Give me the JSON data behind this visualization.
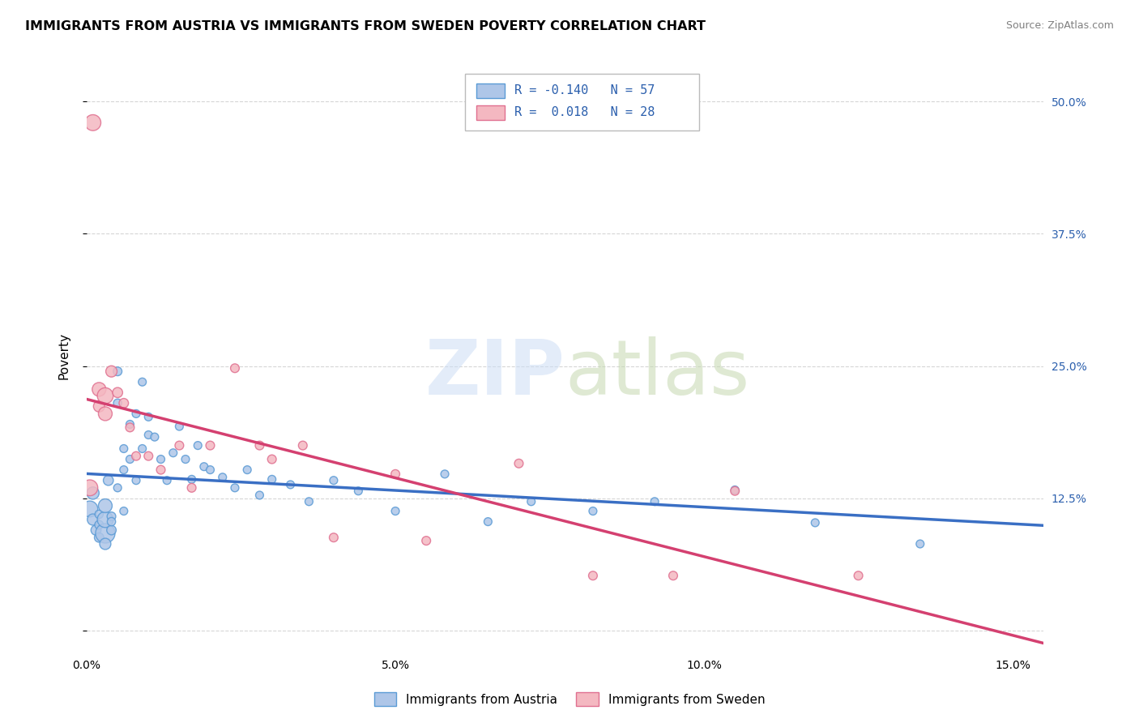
{
  "title": "IMMIGRANTS FROM AUSTRIA VS IMMIGRANTS FROM SWEDEN POVERTY CORRELATION CHART",
  "source": "Source: ZipAtlas.com",
  "ylabel": "Poverty",
  "xlim": [
    0.0,
    0.155
  ],
  "ylim": [
    -0.02,
    0.54
  ],
  "xticks": [
    0.0,
    0.05,
    0.1,
    0.15
  ],
  "xticklabels": [
    "0.0%",
    "5.0%",
    "10.0%",
    "15.0%"
  ],
  "yticks_right": [
    0.0,
    0.125,
    0.25,
    0.375,
    0.5
  ],
  "yticklabels_right": [
    "",
    "12.5%",
    "25.0%",
    "37.5%",
    "50.0%"
  ],
  "austria_color": "#aec6e8",
  "austria_edge": "#5b9bd5",
  "sweden_color": "#f4b8c1",
  "sweden_edge": "#e07090",
  "austria_label": "Immigrants from Austria",
  "sweden_label": "Immigrants from Sweden",
  "austria_R": "-0.140",
  "austria_N": "57",
  "sweden_R": "0.018",
  "sweden_N": "28",
  "legend_R_color": "#2b5fad",
  "regression_austria_color": "#3a6fc4",
  "regression_sweden_color": "#d44070",
  "background_color": "#ffffff",
  "grid_color": "#cccccc",
  "title_fontsize": 11.5,
  "axis_label_fontsize": 11,
  "tick_fontsize": 10,
  "austria_x": [
    0.0005,
    0.001,
    0.001,
    0.0015,
    0.002,
    0.002,
    0.002,
    0.003,
    0.003,
    0.003,
    0.003,
    0.0035,
    0.004,
    0.004,
    0.004,
    0.005,
    0.005,
    0.005,
    0.006,
    0.006,
    0.006,
    0.007,
    0.007,
    0.008,
    0.008,
    0.009,
    0.009,
    0.01,
    0.01,
    0.011,
    0.012,
    0.013,
    0.014,
    0.015,
    0.016,
    0.017,
    0.018,
    0.019,
    0.02,
    0.022,
    0.024,
    0.026,
    0.028,
    0.03,
    0.033,
    0.036,
    0.04,
    0.044,
    0.05,
    0.058,
    0.065,
    0.072,
    0.082,
    0.092,
    0.105,
    0.118,
    0.135
  ],
  "austria_y": [
    0.115,
    0.13,
    0.105,
    0.095,
    0.088,
    0.1,
    0.11,
    0.092,
    0.105,
    0.118,
    0.082,
    0.142,
    0.095,
    0.108,
    0.103,
    0.245,
    0.215,
    0.135,
    0.172,
    0.152,
    0.113,
    0.195,
    0.162,
    0.142,
    0.205,
    0.235,
    0.172,
    0.202,
    0.185,
    0.183,
    0.162,
    0.142,
    0.168,
    0.193,
    0.162,
    0.143,
    0.175,
    0.155,
    0.152,
    0.145,
    0.135,
    0.152,
    0.128,
    0.143,
    0.138,
    0.122,
    0.142,
    0.132,
    0.113,
    0.148,
    0.103,
    0.122,
    0.113,
    0.122,
    0.133,
    0.102,
    0.082
  ],
  "austria_sizes": [
    200,
    120,
    100,
    80,
    70,
    60,
    55,
    300,
    200,
    150,
    100,
    80,
    70,
    60,
    55,
    60,
    55,
    50,
    50,
    50,
    50,
    50,
    50,
    50,
    50,
    50,
    50,
    50,
    50,
    50,
    50,
    50,
    50,
    50,
    50,
    50,
    50,
    50,
    50,
    50,
    50,
    50,
    50,
    50,
    50,
    50,
    50,
    50,
    50,
    50,
    50,
    50,
    50,
    50,
    50,
    50,
    50
  ],
  "sweden_x": [
    0.0005,
    0.001,
    0.002,
    0.002,
    0.003,
    0.003,
    0.004,
    0.005,
    0.006,
    0.007,
    0.008,
    0.01,
    0.012,
    0.015,
    0.017,
    0.02,
    0.024,
    0.028,
    0.03,
    0.035,
    0.04,
    0.05,
    0.055,
    0.07,
    0.082,
    0.095,
    0.105,
    0.125
  ],
  "sweden_y": [
    0.135,
    0.48,
    0.228,
    0.212,
    0.222,
    0.205,
    0.245,
    0.225,
    0.215,
    0.192,
    0.165,
    0.165,
    0.152,
    0.175,
    0.135,
    0.175,
    0.248,
    0.175,
    0.162,
    0.175,
    0.088,
    0.148,
    0.085,
    0.158,
    0.052,
    0.052,
    0.132,
    0.052
  ],
  "sweden_sizes": [
    200,
    200,
    150,
    100,
    200,
    150,
    100,
    80,
    70,
    60,
    60,
    60,
    60,
    60,
    60,
    60,
    60,
    60,
    60,
    60,
    60,
    60,
    60,
    60,
    60,
    60,
    60,
    60
  ]
}
